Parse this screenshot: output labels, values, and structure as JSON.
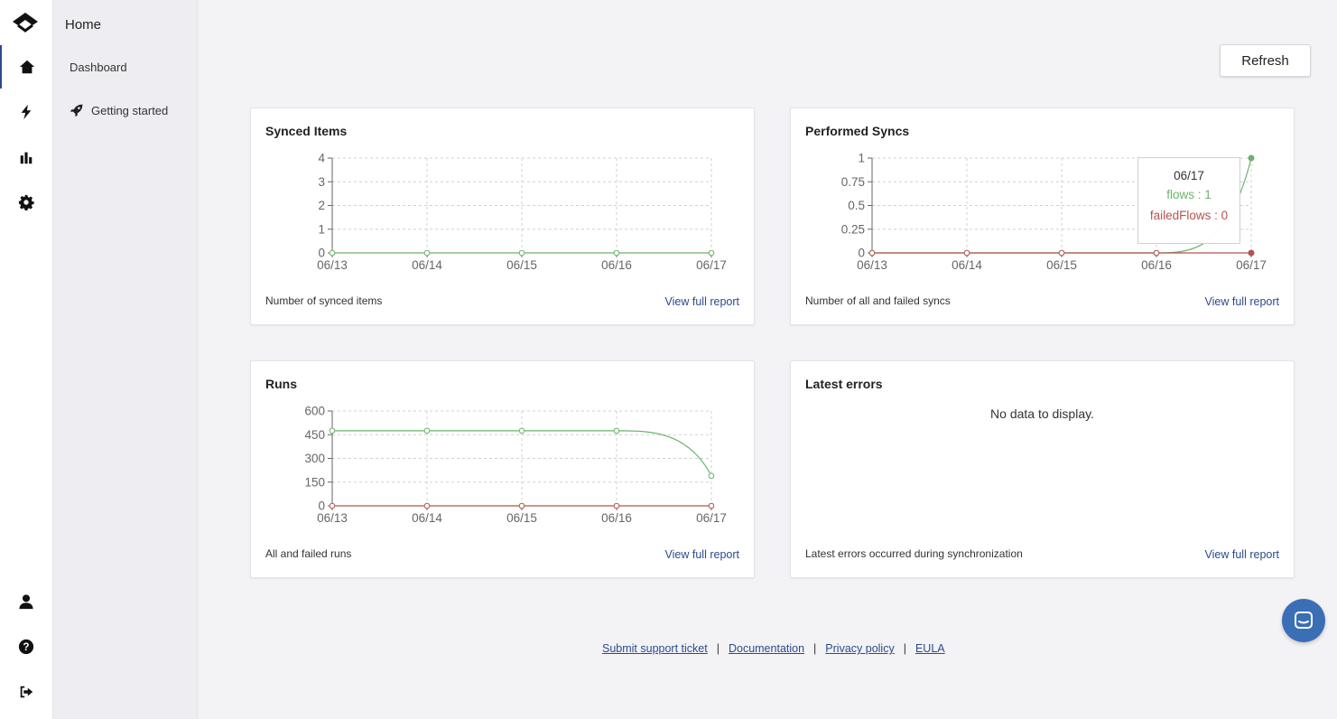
{
  "sidebar": {
    "section_title": "Home",
    "items": [
      {
        "label": "Dashboard",
        "icon": "none"
      },
      {
        "label": "Getting started",
        "icon": "rocket-icon"
      }
    ]
  },
  "rail": {
    "icons": [
      "logo",
      "home-icon",
      "lightning-icon",
      "bar-chart-icon",
      "gear-icon",
      "user-icon",
      "help-icon",
      "sign-out-icon"
    ]
  },
  "toolbar": {
    "refresh_label": "Refresh"
  },
  "cards": {
    "synced": {
      "title": "Synced Items",
      "description": "Number of synced items",
      "link": "View full report"
    },
    "syncs": {
      "title": "Performed Syncs",
      "description": "Number of all and failed syncs",
      "link": "View full report"
    },
    "runs": {
      "title": "Runs",
      "description": "All and failed runs",
      "link": "View full report"
    },
    "errors": {
      "title": "Latest errors",
      "description": "Latest errors occurred during synchronization",
      "link": "View full report",
      "empty_text": "No data to display."
    }
  },
  "tooltip": {
    "date": "06/17",
    "flows": "flows : 1",
    "failed": "failedFlows : 0"
  },
  "footer": {
    "links": [
      "Submit support ticket",
      "Documentation",
      "Privacy policy",
      "EULA"
    ],
    "separator": "|"
  },
  "colors": {
    "success": "#6ab36b",
    "failure": "#b5534d",
    "accent": "#2b4a8c",
    "chat": "#3b6fb5"
  },
  "chart_data": [
    {
      "type": "line",
      "title": "Synced Items",
      "categories": [
        "06/13",
        "06/14",
        "06/15",
        "06/16",
        "06/17"
      ],
      "yticks": [
        "4",
        "3",
        "2",
        "1",
        "0"
      ],
      "ylim": [
        0,
        4
      ],
      "series": [
        {
          "color": "#6ab36b",
          "values": [
            0,
            0,
            0,
            0,
            0
          ]
        }
      ]
    },
    {
      "type": "line",
      "title": "Performed Syncs",
      "categories": [
        "06/13",
        "06/14",
        "06/15",
        "06/16",
        "06/17"
      ],
      "yticks": [
        "1",
        "0.75",
        "0.5",
        "0.25",
        "0"
      ],
      "ylim": [
        0,
        1
      ],
      "series": [
        {
          "name": "flows",
          "color": "#6ab36b",
          "values": [
            0,
            0,
            0,
            0,
            1
          ]
        },
        {
          "name": "failedFlows",
          "color": "#b5534d",
          "values": [
            0,
            0,
            0,
            0,
            0
          ]
        }
      ]
    },
    {
      "type": "line",
      "title": "Runs",
      "categories": [
        "06/13",
        "06/14",
        "06/15",
        "06/16",
        "06/17"
      ],
      "yticks": [
        "600",
        "450",
        "300",
        "150",
        "0"
      ],
      "ylim": [
        0,
        600
      ],
      "series": [
        {
          "color": "#6ab36b",
          "values": [
            475,
            475,
            475,
            475,
            190
          ]
        },
        {
          "color": "#b5534d",
          "values": [
            0,
            0,
            0,
            0,
            0
          ]
        }
      ]
    }
  ]
}
